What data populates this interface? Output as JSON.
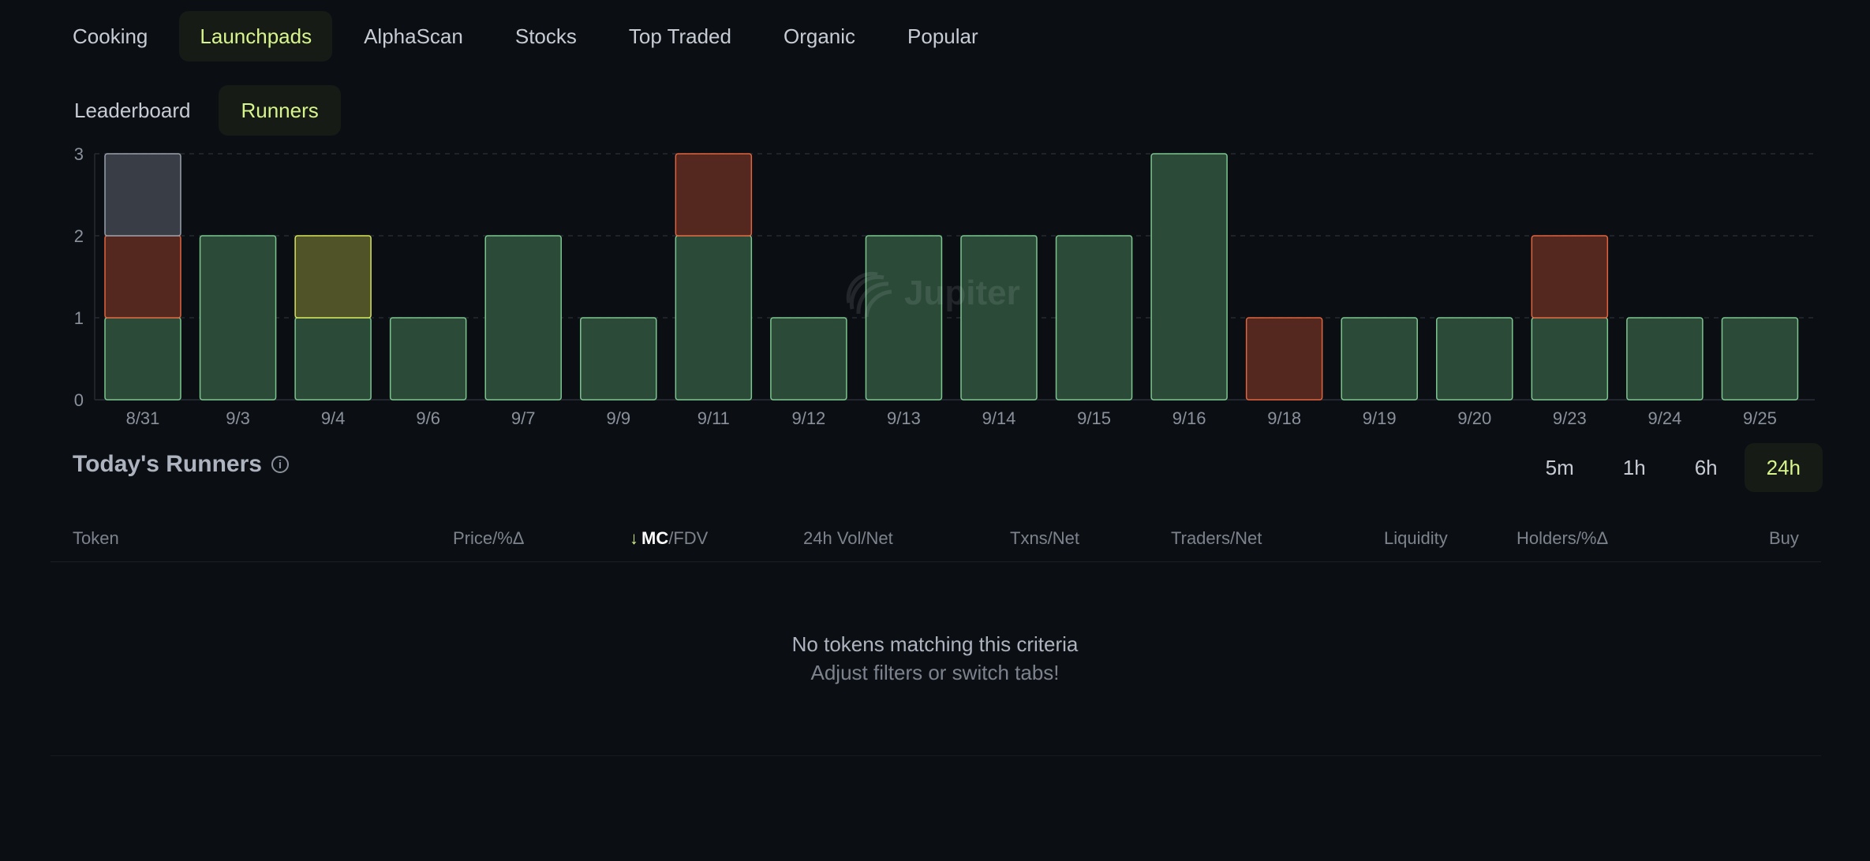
{
  "top_tabs": [
    {
      "label": "Cooking",
      "active": false
    },
    {
      "label": "Launchpads",
      "active": true
    },
    {
      "label": "AlphaScan",
      "active": false
    },
    {
      "label": "Stocks",
      "active": false
    },
    {
      "label": "Top Traded",
      "active": false
    },
    {
      "label": "Organic",
      "active": false
    },
    {
      "label": "Popular",
      "active": false
    }
  ],
  "sub_tabs": [
    {
      "label": "Leaderboard",
      "active": false
    },
    {
      "label": "Runners",
      "active": true
    }
  ],
  "watermark": {
    "text": "Jupiter"
  },
  "colors": {
    "accent": "#d7f58c",
    "green": "#2b4a37",
    "green_border": "#7cc68f",
    "red": "#55281f",
    "red_border": "#e0643e",
    "yellow": "#4f5327",
    "yellow_border": "#d8e55a",
    "gray": "#383d46",
    "gray_border": "#9aa0ab"
  },
  "chart_data": {
    "type": "bar",
    "stacked": true,
    "categories": [
      "8/31",
      "9/3",
      "9/4",
      "9/6",
      "9/7",
      "9/9",
      "9/11",
      "9/12",
      "9/13",
      "9/14",
      "9/15",
      "9/16",
      "9/18",
      "9/19",
      "9/20",
      "9/23",
      "9/24",
      "9/25"
    ],
    "series": [
      {
        "color": "green",
        "values": [
          1,
          2,
          1,
          1,
          2,
          1,
          2,
          1,
          2,
          2,
          2,
          3,
          0,
          1,
          1,
          1,
          1,
          1
        ]
      },
      {
        "color": "red",
        "values": [
          1,
          0,
          0,
          0,
          0,
          0,
          1,
          0,
          0,
          0,
          0,
          0,
          1,
          0,
          0,
          1,
          0,
          0
        ]
      },
      {
        "color": "yellow",
        "values": [
          0,
          0,
          1,
          0,
          0,
          0,
          0,
          0,
          0,
          0,
          0,
          0,
          0,
          0,
          0,
          0,
          0,
          0
        ]
      },
      {
        "color": "gray",
        "values": [
          1,
          0,
          0,
          0,
          0,
          0,
          0,
          0,
          0,
          0,
          0,
          0,
          0,
          0,
          0,
          0,
          0,
          0
        ]
      }
    ],
    "yticks": [
      0,
      1,
      2,
      3
    ],
    "ylim": [
      0,
      3
    ],
    "grid": true
  },
  "runners": {
    "title": "Today's Runners",
    "info_icon": "info-icon",
    "timeframes": [
      {
        "label": "5m",
        "active": false
      },
      {
        "label": "1h",
        "active": false
      },
      {
        "label": "6h",
        "active": false
      },
      {
        "label": "24h",
        "active": true
      }
    ],
    "columns": {
      "token": "Token",
      "price": "Price/%Δ",
      "sort_arrow": "↓",
      "mc": "MC",
      "fdv": "/FDV",
      "vol": "24h Vol/Net",
      "txns": "Txns/Net",
      "traders": "Traders/Net",
      "liquidity": "Liquidity",
      "holders": "Holders/%Δ",
      "buy": "Buy"
    },
    "empty_title": "No tokens matching this criteria",
    "empty_subtitle": "Adjust filters or switch tabs!"
  }
}
